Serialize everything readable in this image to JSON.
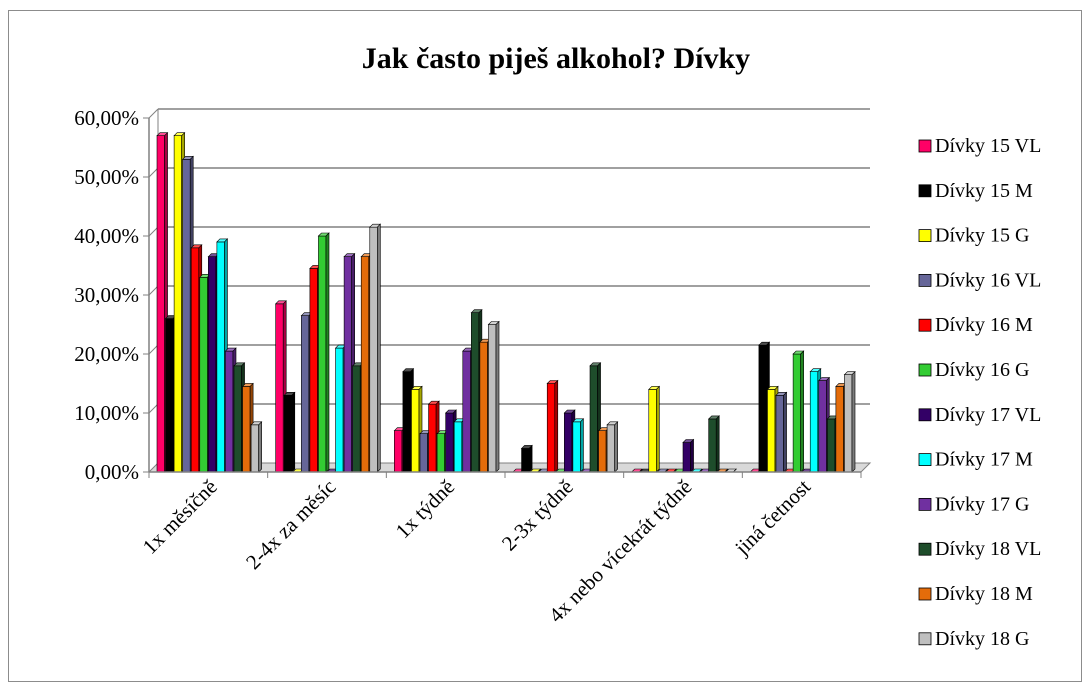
{
  "chart_data": {
    "type": "bar",
    "title": "Jak často piješ alkohol? Dívky",
    "xlabel": "",
    "ylabel": "",
    "ylim": [
      0,
      0.6
    ],
    "y_ticks": [
      "0,00%",
      "10,00%",
      "20,00%",
      "30,00%",
      "40,00%",
      "50,00%",
      "60,00%"
    ],
    "grid": true,
    "legend_position": "right",
    "categories": [
      "1x měsíčně",
      "2-4x za měsíc",
      "1x týdně",
      "2-3x týdně",
      "4x nebo vícekrát týdně",
      "jiná četnost"
    ],
    "series": [
      {
        "name": "Dívky 15 VL",
        "color": "#ff0066",
        "values": [
          0.57,
          0.285,
          0.07,
          0.0,
          0.0,
          0.0
        ]
      },
      {
        "name": "Dívky 15 M",
        "color": "#000000",
        "values": [
          0.26,
          0.13,
          0.17,
          0.04,
          0.0,
          0.215
        ]
      },
      {
        "name": "Dívky 15 G",
        "color": "#ffff00",
        "values": [
          0.57,
          0.0,
          0.14,
          0.0,
          0.14,
          0.14
        ]
      },
      {
        "name": "Dívky 16 VL",
        "color": "#666699",
        "values": [
          0.53,
          0.265,
          0.065,
          0.0,
          0.0,
          0.13
        ]
      },
      {
        "name": "Dívky 16 M",
        "color": "#ff0000",
        "values": [
          0.38,
          0.345,
          0.115,
          0.15,
          0.0,
          0.0
        ]
      },
      {
        "name": "Dívky 16 G",
        "color": "#33cc33",
        "values": [
          0.33,
          0.4,
          0.065,
          0.0,
          0.0,
          0.2
        ]
      },
      {
        "name": "Dívky 17 VL",
        "color": "#330066",
        "values": [
          0.365,
          0.0,
          0.1,
          0.1,
          0.05,
          0.0
        ]
      },
      {
        "name": "Dívky 17 M",
        "color": "#00ffff",
        "values": [
          0.39,
          0.21,
          0.085,
          0.085,
          0.0,
          0.17
        ]
      },
      {
        "name": "Dívky 17 G",
        "color": "#7030a0",
        "values": [
          0.205,
          0.365,
          0.205,
          0.0,
          0.0,
          0.155
        ]
      },
      {
        "name": "Dívky 18 VL",
        "color": "#1e4d2b",
        "values": [
          0.18,
          0.18,
          0.27,
          0.18,
          0.09,
          0.09
        ]
      },
      {
        "name": "Dívky 18 M",
        "color": "#e46c0a",
        "values": [
          0.145,
          0.365,
          0.22,
          0.07,
          0.0,
          0.145
        ]
      },
      {
        "name": "Dívky 18 G",
        "color": "#bfbfbf",
        "values": [
          0.08,
          0.415,
          0.25,
          0.08,
          0.0,
          0.165
        ]
      }
    ]
  }
}
